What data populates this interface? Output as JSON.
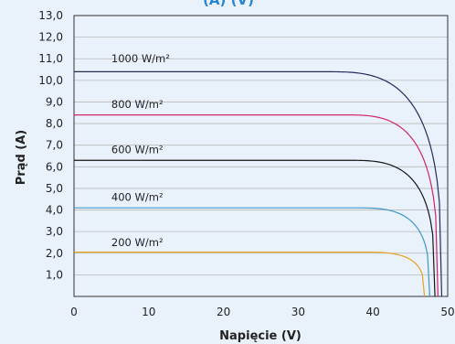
{
  "chart_data": {
    "type": "line",
    "title_fragment": "(A)                    (V)",
    "xlabel": "Napięcie (V)",
    "ylabel": "Prąd (A)",
    "xlim": [
      0,
      50
    ],
    "ylim": [
      0,
      13
    ],
    "x_ticks": [
      "0",
      "10",
      "20",
      "30",
      "40",
      "50"
    ],
    "y_ticks": [
      "1,0",
      "2,0",
      "3,0",
      "4,0",
      "5,0",
      "6,0",
      "7,0",
      "8,0",
      "9,0",
      "10,0",
      "11,0",
      "12,0",
      "13,0"
    ],
    "grid": true,
    "series": [
      {
        "name": "1000 W/m²",
        "color": "#262a5e",
        "isc": 10.4,
        "voc": 49.2,
        "knee": 33.5,
        "label_y": 11.0
      },
      {
        "name": "800 W/m²",
        "color": "#d0246c",
        "isc": 8.4,
        "voc": 48.7,
        "knee": 36.0,
        "label_y": 8.9
      },
      {
        "name": "600 W/m²",
        "color": "#161616",
        "isc": 6.3,
        "voc": 48.3,
        "knee": 36.5,
        "label_y": 6.8
      },
      {
        "name": "400 W/m²",
        "color": "#3e97c9",
        "isc": 4.1,
        "voc": 47.6,
        "knee": 37.5,
        "label_y": 4.6
      },
      {
        "name": "200 W/m²",
        "color": "#e7a021",
        "isc": 2.05,
        "voc": 46.9,
        "knee": 38.5,
        "label_y": 2.5
      }
    ]
  }
}
